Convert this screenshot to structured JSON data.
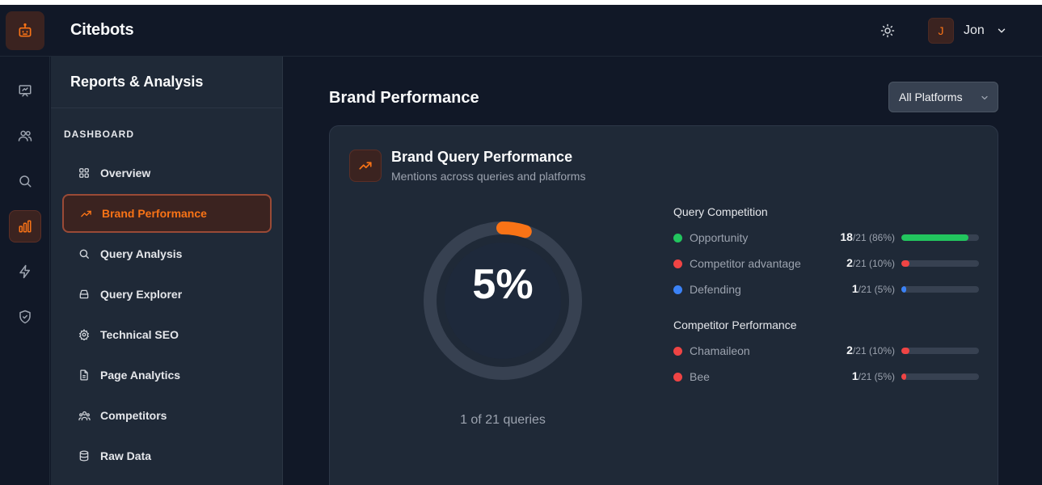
{
  "app": {
    "title": "Citebots"
  },
  "user": {
    "initial": "J",
    "name": "Jon"
  },
  "rail": {
    "icons": [
      "presentation-icon",
      "users-icon",
      "search-icon",
      "bar-chart-icon",
      "zap-icon",
      "shield-check-icon"
    ],
    "active_index": 3
  },
  "sidebar": {
    "title": "Reports & Analysis",
    "section": "DASHBOARD",
    "items": [
      {
        "label": "Overview",
        "icon": "grid-icon"
      },
      {
        "label": "Brand Performance",
        "icon": "trending-up-icon",
        "active": true
      },
      {
        "label": "Query Analysis",
        "icon": "search-icon"
      },
      {
        "label": "Query Explorer",
        "icon": "archive-icon"
      },
      {
        "label": "Technical SEO",
        "icon": "settings-icon"
      },
      {
        "label": "Page Analytics",
        "icon": "file-text-icon"
      },
      {
        "label": "Competitors",
        "icon": "team-icon"
      },
      {
        "label": "Raw Data",
        "icon": "database-icon"
      }
    ]
  },
  "main": {
    "page_title": "Brand Performance",
    "platform_select": "All Platforms"
  },
  "card": {
    "title": "Brand Query Performance",
    "subtitle": "Mentions across queries and platforms",
    "donut": {
      "value_label": "5%",
      "fraction": 0.05,
      "caption": "1 of 21 queries"
    },
    "query_competition": {
      "title": "Query Competition",
      "rows": [
        {
          "label": "Opportunity",
          "count": "18",
          "detail": "/21 (86%)",
          "fraction": 0.86,
          "color": "#22c55e"
        },
        {
          "label": "Competitor advantage",
          "count": "2",
          "detail": "/21 (10%)",
          "fraction": 0.1,
          "color": "#ef4444"
        },
        {
          "label": "Defending",
          "count": "1",
          "detail": "/21 (5%)",
          "fraction": 0.05,
          "color": "#3b82f6"
        }
      ]
    },
    "competitor_performance": {
      "title": "Competitor Performance",
      "rows": [
        {
          "label": "Chamaileon",
          "count": "2",
          "detail": "/21 (10%)",
          "fraction": 0.1,
          "color": "#ef4444"
        },
        {
          "label": "Bee",
          "count": "1",
          "detail": "/21 (5%)",
          "fraction": 0.05,
          "color": "#ef4444"
        }
      ]
    }
  },
  "colors": {
    "accent": "#f97316",
    "background": "#111827",
    "panel": "#1f2937"
  }
}
